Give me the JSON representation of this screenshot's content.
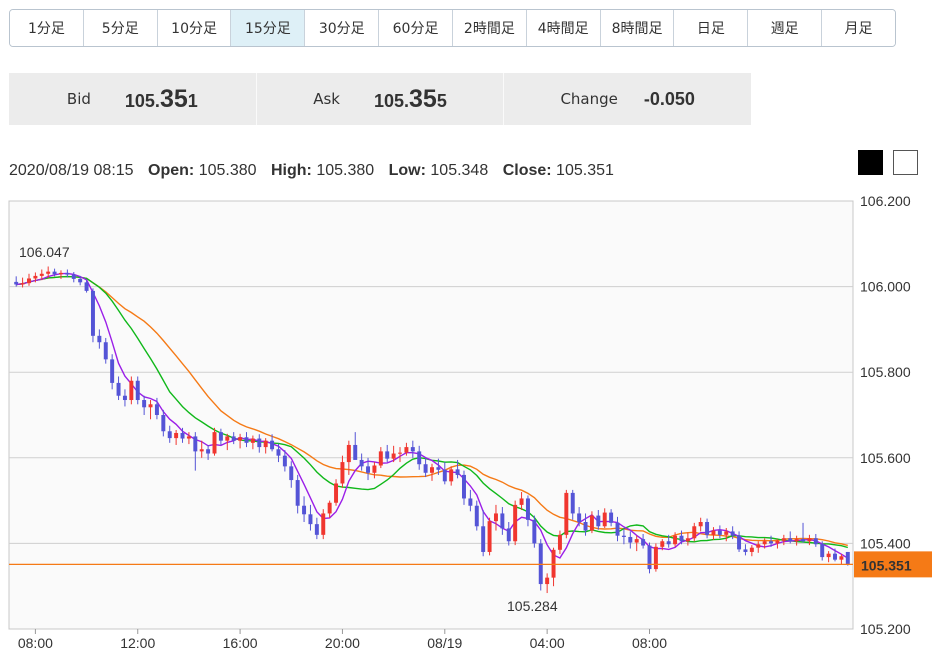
{
  "timeframes": [
    "1分足",
    "5分足",
    "10分足",
    "15分足",
    "30分足",
    "60分足",
    "2時間足",
    "4時間足",
    "8時間足",
    "日足",
    "週足",
    "月足"
  ],
  "active_timeframe": "15分足",
  "quote": {
    "bid_label": "Bid",
    "bid_main": "105.",
    "bid_big": "35",
    "bid_small": "1",
    "ask_label": "Ask",
    "ask_main": "105.",
    "ask_big": "35",
    "ask_small": "5",
    "change_label": "Change",
    "change_value": "-0.050"
  },
  "ohlc": {
    "datetime": "2020/08/19 08:15",
    "open_label": "Open:",
    "open": "105.380",
    "high_label": "High:",
    "high": "105.380",
    "low_label": "Low:",
    "low": "105.348",
    "close_label": "Close:",
    "close": "105.351"
  },
  "theme": {
    "dark": "#000000",
    "light": "#ffffff"
  },
  "colors": {
    "up": "#f0362f",
    "down": "#5454d6",
    "ma_fast": "#9b1fe8",
    "ma_mid": "#10b81a",
    "ma_slow": "#f57a16",
    "price_line": "#f57a16",
    "high_label": "#e0405a",
    "low_label": "#3a62b8"
  },
  "chart_data": {
    "type": "candlestick",
    "interval": "15m",
    "ylim": [
      105.2,
      106.2
    ],
    "y_ticks": [
      "105.200",
      "105.400",
      "105.600",
      "105.800",
      "106.000",
      "106.200"
    ],
    "x_ticks": [
      "08:00",
      "12:00",
      "16:00",
      "20:00",
      "08/19",
      "04:00",
      "08:00"
    ],
    "current_price": "105.351",
    "max_label": "106.047",
    "min_label": "105.284",
    "candles": [
      [
        106.011,
        106.024,
        106.0,
        106.005
      ],
      [
        106.005,
        106.021,
        105.998,
        106.008
      ],
      [
        106.008,
        106.03,
        106.002,
        106.019
      ],
      [
        106.019,
        106.033,
        106.01,
        106.025
      ],
      [
        106.025,
        106.04,
        106.015,
        106.03
      ],
      [
        106.03,
        106.047,
        106.02,
        106.035
      ],
      [
        106.035,
        106.042,
        106.024,
        106.029
      ],
      [
        106.029,
        106.038,
        106.018,
        106.032
      ],
      [
        106.032,
        106.04,
        106.022,
        106.028
      ],
      [
        106.028,
        106.034,
        106.01,
        106.018
      ],
      [
        106.018,
        106.025,
        106.003,
        106.01
      ],
      [
        106.01,
        106.015,
        105.986,
        105.99
      ],
      [
        105.99,
        105.996,
        105.87,
        105.885
      ],
      [
        105.885,
        105.9,
        105.855,
        105.87
      ],
      [
        105.87,
        105.88,
        105.82,
        105.83
      ],
      [
        105.83,
        105.842,
        105.76,
        105.775
      ],
      [
        105.775,
        105.79,
        105.735,
        105.745
      ],
      [
        105.745,
        105.76,
        105.72,
        105.735
      ],
      [
        105.735,
        105.79,
        105.725,
        105.78
      ],
      [
        105.78,
        105.79,
        105.725,
        105.735
      ],
      [
        105.735,
        105.745,
        105.7,
        105.718
      ],
      [
        105.718,
        105.735,
        105.69,
        105.725
      ],
      [
        105.725,
        105.74,
        105.69,
        105.7
      ],
      [
        105.7,
        105.712,
        105.65,
        105.662
      ],
      [
        105.662,
        105.675,
        105.635,
        105.646
      ],
      [
        105.646,
        105.665,
        105.63,
        105.658
      ],
      [
        105.658,
        105.67,
        105.635,
        105.645
      ],
      [
        105.645,
        105.66,
        105.632,
        105.65
      ],
      [
        105.65,
        105.66,
        105.57,
        105.615
      ],
      [
        105.615,
        105.64,
        105.6,
        105.62
      ],
      [
        105.62,
        105.63,
        105.595,
        105.61
      ],
      [
        105.61,
        105.67,
        105.605,
        105.66
      ],
      [
        105.66,
        105.668,
        105.63,
        105.64
      ],
      [
        105.64,
        105.656,
        105.618,
        105.65
      ],
      [
        105.65,
        105.66,
        105.632,
        105.64
      ],
      [
        105.64,
        105.656,
        105.622,
        105.648
      ],
      [
        105.648,
        105.66,
        105.625,
        105.635
      ],
      [
        105.635,
        105.652,
        105.62,
        105.645
      ],
      [
        105.645,
        105.655,
        105.612,
        105.625
      ],
      [
        105.625,
        105.646,
        105.61,
        105.64
      ],
      [
        105.64,
        105.655,
        105.615,
        105.62
      ],
      [
        105.62,
        105.633,
        105.59,
        105.605
      ],
      [
        105.605,
        105.618,
        105.568,
        105.58
      ],
      [
        105.58,
        105.592,
        105.53,
        105.548
      ],
      [
        105.548,
        105.56,
        105.47,
        105.488
      ],
      [
        105.488,
        105.51,
        105.45,
        105.468
      ],
      [
        105.468,
        105.49,
        105.43,
        105.445
      ],
      [
        105.445,
        105.46,
        105.41,
        105.42
      ],
      [
        105.42,
        105.48,
        105.41,
        105.47
      ],
      [
        105.47,
        105.5,
        105.46,
        105.495
      ],
      [
        105.495,
        105.55,
        105.488,
        105.54
      ],
      [
        105.54,
        105.605,
        105.53,
        105.59
      ],
      [
        105.59,
        105.64,
        105.56,
        105.63
      ],
      [
        105.63,
        105.66,
        105.6,
        105.595
      ],
      [
        105.595,
        105.61,
        105.57,
        105.58
      ],
      [
        105.58,
        105.6,
        105.548,
        105.565
      ],
      [
        105.565,
        105.59,
        105.552,
        105.582
      ],
      [
        105.582,
        105.625,
        105.576,
        105.615
      ],
      [
        105.615,
        105.63,
        105.59,
        105.598
      ],
      [
        105.598,
        105.628,
        105.59,
        105.61
      ],
      [
        105.61,
        105.625,
        105.59,
        105.612
      ],
      [
        105.612,
        105.635,
        105.605,
        105.625
      ],
      [
        105.625,
        105.64,
        105.6,
        105.615
      ],
      [
        105.615,
        105.628,
        105.572,
        105.585
      ],
      [
        105.585,
        105.6,
        105.555,
        105.565
      ],
      [
        105.565,
        105.586,
        105.546,
        105.578
      ],
      [
        105.578,
        105.598,
        105.56,
        105.572
      ],
      [
        105.572,
        105.59,
        105.538,
        105.545
      ],
      [
        105.545,
        105.58,
        105.535,
        105.573
      ],
      [
        105.573,
        105.595,
        105.552,
        105.56
      ],
      [
        105.56,
        105.57,
        105.49,
        105.505
      ],
      [
        105.505,
        105.525,
        105.475,
        105.488
      ],
      [
        105.488,
        105.5,
        105.43,
        105.44
      ],
      [
        105.44,
        105.478,
        105.37,
        105.38
      ],
      [
        105.38,
        105.46,
        105.372,
        105.452
      ],
      [
        105.452,
        105.49,
        105.43,
        105.47
      ],
      [
        105.47,
        105.485,
        105.42,
        105.435
      ],
      [
        105.435,
        105.45,
        105.395,
        105.405
      ],
      [
        105.405,
        105.5,
        105.396,
        105.49
      ],
      [
        105.49,
        105.52,
        105.478,
        105.505
      ],
      [
        105.505,
        105.512,
        105.44,
        105.455
      ],
      [
        105.455,
        105.465,
        105.39,
        105.4
      ],
      [
        105.4,
        105.41,
        105.29,
        105.305
      ],
      [
        105.305,
        105.33,
        105.284,
        105.32
      ],
      [
        105.32,
        105.39,
        105.3,
        105.385
      ],
      [
        105.385,
        105.43,
        105.375,
        105.42
      ],
      [
        105.42,
        105.525,
        105.412,
        105.518
      ],
      [
        105.518,
        105.525,
        105.455,
        105.47
      ],
      [
        105.47,
        105.485,
        105.44,
        105.45
      ],
      [
        105.45,
        105.47,
        105.418,
        105.43
      ],
      [
        105.43,
        105.475,
        105.424,
        105.465
      ],
      [
        105.465,
        105.478,
        105.432,
        105.44
      ],
      [
        105.44,
        105.482,
        105.436,
        105.472
      ],
      [
        105.472,
        105.48,
        105.44,
        105.448
      ],
      [
        105.448,
        105.462,
        105.405,
        105.418
      ],
      [
        105.418,
        105.435,
        105.398,
        105.415
      ],
      [
        105.415,
        105.428,
        105.388,
        105.402
      ],
      [
        105.402,
        105.418,
        105.382,
        105.41
      ],
      [
        105.41,
        105.422,
        105.388,
        105.395
      ],
      [
        105.395,
        105.402,
        105.33,
        105.34
      ],
      [
        105.34,
        105.4,
        105.334,
        105.392
      ],
      [
        105.392,
        105.41,
        105.384,
        105.405
      ],
      [
        105.405,
        105.42,
        105.39,
        105.398
      ],
      [
        105.398,
        105.426,
        105.392,
        105.418
      ],
      [
        105.418,
        105.43,
        105.398,
        105.405
      ],
      [
        105.405,
        105.425,
        105.395,
        105.412
      ],
      [
        105.412,
        105.448,
        105.405,
        105.44
      ],
      [
        105.44,
        105.46,
        105.428,
        105.45
      ],
      [
        105.45,
        105.458,
        105.412,
        105.42
      ],
      [
        105.42,
        105.438,
        105.408,
        105.43
      ],
      [
        105.43,
        105.442,
        105.412,
        105.42
      ],
      [
        105.42,
        105.436,
        105.405,
        105.428
      ],
      [
        105.428,
        105.44,
        105.41,
        105.418
      ],
      [
        105.418,
        105.428,
        105.38,
        105.386
      ],
      [
        105.386,
        105.398,
        105.372,
        105.38
      ],
      [
        105.38,
        105.396,
        105.37,
        105.39
      ],
      [
        105.39,
        105.405,
        105.378,
        105.398
      ],
      [
        105.398,
        105.412,
        105.388,
        105.405
      ],
      [
        105.405,
        105.418,
        105.392,
        105.4
      ],
      [
        105.4,
        105.41,
        105.388,
        105.406
      ],
      [
        105.406,
        105.42,
        105.396,
        105.412
      ],
      [
        105.412,
        105.428,
        105.4,
        105.405
      ],
      [
        105.405,
        105.418,
        105.395,
        105.41
      ],
      [
        105.41,
        105.448,
        105.402,
        105.405
      ],
      [
        105.405,
        105.42,
        105.396,
        105.412
      ],
      [
        105.412,
        105.422,
        105.392,
        105.398
      ],
      [
        105.398,
        105.405,
        105.36,
        105.368
      ],
      [
        105.368,
        105.382,
        105.356,
        105.376
      ],
      [
        105.376,
        105.388,
        105.358,
        105.362
      ],
      [
        105.362,
        105.375,
        105.35,
        105.37
      ],
      [
        105.38,
        105.38,
        105.348,
        105.351
      ]
    ]
  }
}
